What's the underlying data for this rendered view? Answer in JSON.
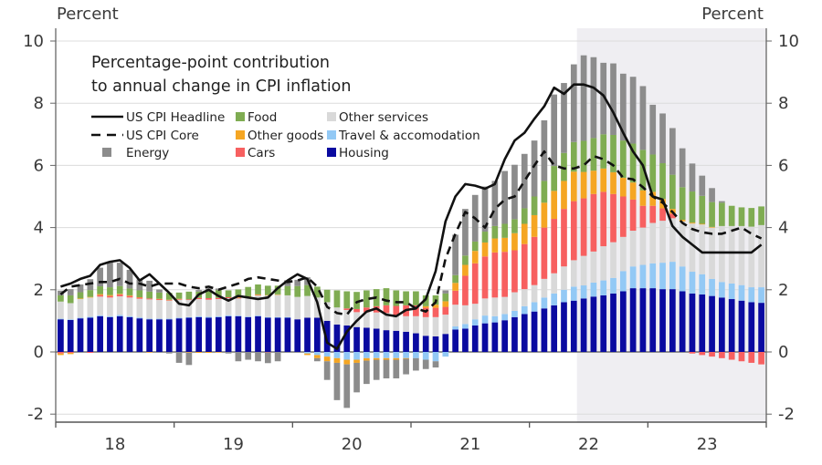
{
  "chart_data": {
    "type": "bar",
    "subtype": "stacked-bar-with-lines",
    "title": "Percentage-point contribution to annual change in CPI inflation",
    "ylabel_left": "Percent",
    "ylabel_right": "Percent",
    "ylim": [
      -2.3,
      10.5
    ],
    "yticks": [
      -2,
      0,
      2,
      4,
      6,
      8,
      10
    ],
    "ytick_labels": [
      "-2",
      "0",
      "2",
      "4",
      "6",
      "8",
      "10"
    ],
    "xtick_labels": [
      "18",
      "19",
      "20",
      "21",
      "22",
      "23"
    ],
    "x_start": "2018-01",
    "x_end": "2023-12",
    "frequency": "monthly",
    "grid": true,
    "shaded_region": {
      "start": "2022-06",
      "end": "2023-12",
      "color": "#efeef2"
    },
    "legend_placement": "top-left",
    "colors": {
      "housing": "#0a0aa0",
      "travel": "#93c9f5",
      "other_services": "#d9d9d9",
      "cars": "#f76060",
      "other_goods": "#f5a623",
      "food": "#7fac52",
      "energy": "#8c8c8c",
      "headline": "#111111",
      "core": "#111111"
    },
    "legend": [
      {
        "key": "headline",
        "label": "US CPI Headline",
        "kind": "line-solid"
      },
      {
        "key": "food",
        "label": "Food",
        "kind": "swatch"
      },
      {
        "key": "other_services",
        "label": "Other services",
        "kind": "swatch"
      },
      {
        "key": "core",
        "label": "US CPI Core",
        "kind": "line-dashed"
      },
      {
        "key": "other_goods",
        "label": "Other goods",
        "kind": "swatch"
      },
      {
        "key": "travel",
        "label": "Travel & accomodation",
        "kind": "swatch"
      },
      {
        "key": "energy",
        "label": "Energy",
        "kind": "swatch"
      },
      {
        "key": "cars",
        "label": "Cars",
        "kind": "swatch"
      },
      {
        "key": "housing",
        "label": "Housing",
        "kind": "swatch"
      }
    ],
    "series": [
      {
        "name": "Housing",
        "key": "housing",
        "values": [
          1.05,
          1.03,
          1.08,
          1.1,
          1.15,
          1.12,
          1.15,
          1.12,
          1.08,
          1.05,
          1.05,
          1.05,
          1.08,
          1.1,
          1.12,
          1.1,
          1.12,
          1.15,
          1.15,
          1.12,
          1.15,
          1.1,
          1.1,
          1.1,
          1.05,
          1.1,
          1.1,
          1.0,
          0.88,
          0.85,
          0.8,
          0.78,
          0.75,
          0.7,
          0.68,
          0.65,
          0.6,
          0.52,
          0.5,
          0.58,
          0.72,
          0.75,
          0.85,
          0.92,
          0.95,
          1.02,
          1.12,
          1.22,
          1.3,
          1.4,
          1.5,
          1.6,
          1.65,
          1.72,
          1.78,
          1.82,
          1.88,
          1.95,
          2.05,
          2.05,
          2.05,
          2.02,
          2.02,
          1.95,
          1.88,
          1.85,
          1.8,
          1.75,
          1.7,
          1.65,
          1.6,
          1.58
        ]
      },
      {
        "name": "Travel & accomodation",
        "key": "travel",
        "values": [
          0.02,
          0.02,
          0.02,
          0.03,
          0.03,
          0.03,
          0.04,
          0.03,
          0.03,
          0.02,
          0.02,
          0.02,
          0.02,
          0.02,
          0.03,
          0.03,
          0.03,
          0.03,
          0.02,
          0.02,
          0.02,
          0.02,
          0.02,
          0.02,
          0.0,
          -0.05,
          -0.1,
          -0.15,
          -0.2,
          -0.25,
          -0.25,
          -0.2,
          -0.2,
          -0.2,
          -0.2,
          -0.2,
          -0.2,
          -0.25,
          -0.3,
          -0.15,
          0.1,
          0.15,
          0.2,
          0.25,
          0.2,
          0.2,
          0.2,
          0.25,
          0.3,
          0.35,
          0.38,
          0.4,
          0.45,
          0.42,
          0.45,
          0.48,
          0.5,
          0.65,
          0.7,
          0.75,
          0.8,
          0.85,
          0.88,
          0.8,
          0.7,
          0.65,
          0.55,
          0.5,
          0.5,
          0.5,
          0.48,
          0.5
        ]
      },
      {
        "name": "Other services",
        "key": "other_services",
        "values": [
          0.55,
          0.52,
          0.6,
          0.62,
          0.6,
          0.6,
          0.6,
          0.6,
          0.6,
          0.62,
          0.6,
          0.58,
          0.58,
          0.55,
          0.55,
          0.55,
          0.55,
          0.55,
          0.55,
          0.6,
          0.65,
          0.7,
          0.72,
          0.7,
          0.72,
          0.7,
          0.65,
          0.6,
          0.55,
          0.5,
          0.48,
          0.5,
          0.52,
          0.55,
          0.5,
          0.5,
          0.55,
          0.6,
          0.62,
          0.62,
          0.7,
          0.6,
          0.5,
          0.55,
          0.6,
          0.55,
          0.6,
          0.55,
          0.55,
          0.6,
          0.65,
          0.75,
          0.85,
          0.95,
          1.0,
          1.1,
          1.15,
          1.1,
          1.15,
          1.2,
          1.3,
          1.35,
          1.4,
          1.45,
          1.55,
          1.6,
          1.65,
          1.8,
          1.85,
          1.9,
          1.95,
          2.0
        ]
      },
      {
        "name": "Cars",
        "key": "cars",
        "values": [
          -0.05,
          -0.03,
          0.0,
          -0.03,
          0.05,
          0.05,
          0.06,
          0.05,
          0.04,
          0.03,
          0.03,
          0.02,
          0.02,
          0.02,
          0.04,
          0.05,
          0.04,
          0.03,
          0.02,
          0.02,
          0.01,
          -0.01,
          0.0,
          0.0,
          0.0,
          0.0,
          0.0,
          0.0,
          0.0,
          0.05,
          0.1,
          0.15,
          0.2,
          0.25,
          0.3,
          0.35,
          0.35,
          0.3,
          0.3,
          0.25,
          0.45,
          0.95,
          1.3,
          1.35,
          1.45,
          1.45,
          1.35,
          1.45,
          1.55,
          1.65,
          1.75,
          1.85,
          1.9,
          1.85,
          1.85,
          1.75,
          1.55,
          1.3,
          1.0,
          0.7,
          0.55,
          0.4,
          0.15,
          0.0,
          -0.05,
          -0.1,
          -0.15,
          -0.2,
          -0.25,
          -0.3,
          -0.35,
          -0.4
        ]
      },
      {
        "name": "Other goods",
        "key": "other_goods",
        "values": [
          -0.05,
          -0.04,
          0.02,
          0.02,
          0.03,
          0.03,
          0.02,
          0.02,
          0.01,
          -0.02,
          0.01,
          0.01,
          0.01,
          -0.02,
          -0.03,
          -0.03,
          -0.02,
          0.0,
          0.02,
          0.03,
          0.02,
          0.01,
          0.01,
          0.0,
          0.0,
          -0.05,
          -0.1,
          -0.15,
          -0.15,
          -0.15,
          -0.1,
          -0.08,
          -0.05,
          -0.05,
          -0.05,
          -0.02,
          0.0,
          0.05,
          0.1,
          0.18,
          0.25,
          0.35,
          0.4,
          0.45,
          0.45,
          0.45,
          0.55,
          0.65,
          0.7,
          0.8,
          0.9,
          0.9,
          0.95,
          0.85,
          0.75,
          0.75,
          0.7,
          0.6,
          0.55,
          0.5,
          0.45,
          0.3,
          0.15,
          0.05,
          0.03,
          0.02,
          0.02,
          0.0,
          0.0,
          0.0,
          0.0,
          0.0
        ]
      },
      {
        "name": "Food",
        "key": "food",
        "values": [
          0.2,
          0.25,
          0.2,
          0.22,
          0.25,
          0.25,
          0.25,
          0.22,
          0.22,
          0.22,
          0.2,
          0.22,
          0.2,
          0.25,
          0.2,
          0.22,
          0.25,
          0.22,
          0.25,
          0.3,
          0.32,
          0.3,
          0.28,
          0.3,
          0.35,
          0.35,
          0.35,
          0.4,
          0.55,
          0.55,
          0.55,
          0.55,
          0.55,
          0.55,
          0.5,
          0.45,
          0.45,
          0.35,
          0.3,
          0.25,
          0.25,
          0.3,
          0.3,
          0.35,
          0.4,
          0.45,
          0.45,
          0.5,
          0.6,
          0.7,
          0.8,
          0.9,
          0.95,
          1.0,
          1.05,
          1.1,
          1.2,
          1.2,
          1.25,
          1.3,
          1.2,
          1.15,
          1.1,
          1.05,
          1.0,
          0.9,
          0.8,
          0.75,
          0.65,
          0.6,
          0.6,
          0.6
        ]
      },
      {
        "name": "Energy",
        "key": "energy",
        "values": [
          0.15,
          0.2,
          0.25,
          0.35,
          0.6,
          0.8,
          0.75,
          0.6,
          0.35,
          0.35,
          0.1,
          -0.05,
          -0.35,
          -0.4,
          0.05,
          0.1,
          0.05,
          -0.05,
          -0.3,
          -0.25,
          -0.3,
          -0.35,
          -0.3,
          0.15,
          0.2,
          0.25,
          -0.1,
          -0.6,
          -1.2,
          -1.4,
          -0.95,
          -0.75,
          -0.65,
          -0.6,
          -0.6,
          -0.5,
          -0.4,
          -0.3,
          -0.2,
          0.1,
          1.3,
          1.5,
          1.5,
          1.45,
          1.45,
          1.7,
          1.75,
          1.75,
          1.8,
          1.95,
          2.3,
          2.25,
          2.5,
          2.75,
          2.6,
          2.3,
          2.3,
          2.15,
          2.15,
          2.05,
          1.6,
          1.6,
          1.5,
          1.25,
          0.9,
          0.65,
          0.45,
          0.05,
          0.0,
          0.0,
          0.0,
          0.0
        ]
      },
      {
        "name": "US CPI Headline",
        "key": "headline",
        "type": "line",
        "style": "solid",
        "values": [
          2.1,
          2.2,
          2.35,
          2.45,
          2.8,
          2.9,
          2.95,
          2.7,
          2.3,
          2.5,
          2.2,
          1.9,
          1.55,
          1.5,
          1.85,
          2.0,
          1.8,
          1.65,
          1.8,
          1.75,
          1.7,
          1.75,
          2.05,
          2.3,
          2.5,
          2.35,
          1.6,
          0.3,
          0.1,
          0.65,
          1.0,
          1.3,
          1.4,
          1.2,
          1.15,
          1.35,
          1.4,
          1.7,
          2.6,
          4.2,
          5.0,
          5.4,
          5.35,
          5.25,
          5.4,
          6.2,
          6.8,
          7.05,
          7.5,
          7.9,
          8.5,
          8.3,
          8.6,
          8.6,
          8.5,
          8.25,
          7.7,
          7.05,
          6.45,
          6.0,
          5.0,
          4.9,
          4.05,
          3.7,
          3.45,
          3.2,
          3.2,
          3.2,
          3.2,
          3.2,
          3.2,
          3.45
        ]
      },
      {
        "name": "US CPI Core",
        "key": "core",
        "type": "line",
        "style": "dashed",
        "values": [
          1.85,
          2.1,
          2.15,
          2.2,
          2.25,
          2.25,
          2.35,
          2.2,
          2.2,
          2.1,
          2.2,
          2.2,
          2.2,
          2.1,
          2.05,
          2.1,
          2.0,
          2.1,
          2.2,
          2.35,
          2.4,
          2.35,
          2.3,
          2.25,
          2.3,
          2.4,
          2.1,
          1.45,
          1.25,
          1.2,
          1.6,
          1.7,
          1.75,
          1.65,
          1.6,
          1.6,
          1.4,
          1.3,
          1.6,
          3.0,
          3.8,
          4.5,
          4.3,
          4.0,
          4.6,
          4.9,
          5.0,
          5.5,
          6.0,
          6.45,
          6.0,
          5.9,
          5.9,
          6.0,
          6.3,
          6.2,
          6.0,
          5.6,
          5.55,
          5.3,
          5.0,
          4.8,
          4.5,
          4.15,
          3.95,
          3.85,
          3.8,
          3.8,
          3.9,
          4.0,
          3.8,
          3.65
        ]
      }
    ]
  }
}
